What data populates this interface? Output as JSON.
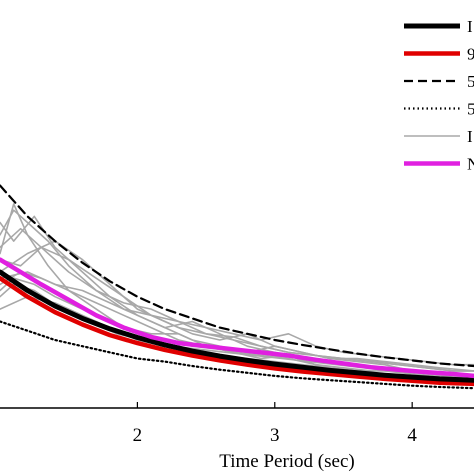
{
  "chart_data": {
    "type": "line",
    "xlabel": "Time Period (sec)",
    "ylabel": "",
    "title": "",
    "xlim": [
      1.0,
      4.45
    ],
    "ylim": [
      0.0,
      0.66
    ],
    "x_ticks": [
      2,
      3,
      4
    ],
    "x_tick_labels": [
      "2",
      "3",
      "4"
    ],
    "grid": false,
    "legend_position": "top-right",
    "legend": [
      {
        "label": "I",
        "color": "#000000",
        "dash": "",
        "width": 5
      },
      {
        "label": "9",
        "color": "#e00000",
        "dash": "",
        "width": 4.5
      },
      {
        "label": "5",
        "color": "#000000",
        "dash": "9 5",
        "width": 2.2
      },
      {
        "label": "5",
        "color": "#000000",
        "dash": "1.5 3",
        "width": 2.2
      },
      {
        "label": "I",
        "color": "#a8a8a8",
        "dash": "",
        "width": 1.6
      },
      {
        "label": "N",
        "color": "#e020e0",
        "dash": "",
        "width": 4.5
      }
    ],
    "series": [
      {
        "style_index": 4,
        "color": "#a8a8a8",
        "x": [
          1.0,
          1.1,
          1.2,
          1.35,
          1.5,
          1.7,
          1.9,
          2.1,
          2.3,
          2.5,
          2.7,
          2.9,
          3.1,
          3.3,
          3.5,
          3.7,
          3.9,
          4.1,
          4.3,
          4.45
        ],
        "y": [
          0.25,
          0.33,
          0.28,
          0.23,
          0.19,
          0.17,
          0.15,
          0.13,
          0.11,
          0.1,
          0.09,
          0.085,
          0.08,
          0.07,
          0.06,
          0.055,
          0.05,
          0.05,
          0.045,
          0.04
        ]
      },
      {
        "style_index": 4,
        "color": "#a8a8a8",
        "x": [
          1.0,
          1.1,
          1.25,
          1.4,
          1.6,
          1.8,
          2.0,
          2.2,
          2.4,
          2.6,
          2.8,
          3.0,
          3.2,
          3.4,
          3.6,
          3.8,
          4.0,
          4.2,
          4.45
        ],
        "y": [
          0.3,
          0.27,
          0.31,
          0.26,
          0.22,
          0.18,
          0.15,
          0.13,
          0.14,
          0.12,
          0.1,
          0.09,
          0.08,
          0.075,
          0.07,
          0.06,
          0.055,
          0.05,
          0.045
        ]
      },
      {
        "style_index": 4,
        "color": "#a8a8a8",
        "x": [
          1.0,
          1.15,
          1.3,
          1.5,
          1.7,
          1.9,
          2.1,
          2.3,
          2.5,
          2.7,
          2.9,
          3.1,
          3.3,
          3.5,
          3.7,
          3.9,
          4.1,
          4.3,
          4.45
        ],
        "y": [
          0.2,
          0.22,
          0.21,
          0.19,
          0.16,
          0.13,
          0.12,
          0.12,
          0.1,
          0.09,
          0.08,
          0.085,
          0.07,
          0.065,
          0.06,
          0.06,
          0.055,
          0.05,
          0.05
        ]
      },
      {
        "style_index": 4,
        "color": "#a8a8a8",
        "x": [
          1.0,
          1.1,
          1.2,
          1.35,
          1.5,
          1.7,
          1.9,
          2.1,
          2.3,
          2.5,
          2.7,
          2.9,
          3.1,
          3.3,
          3.5,
          3.7,
          3.9,
          4.1,
          4.3,
          4.45
        ],
        "y": [
          0.28,
          0.32,
          0.3,
          0.27,
          0.23,
          0.19,
          0.16,
          0.15,
          0.14,
          0.12,
          0.11,
          0.1,
          0.09,
          0.085,
          0.08,
          0.075,
          0.07,
          0.065,
          0.06,
          0.06
        ]
      },
      {
        "style_index": 4,
        "color": "#a8a8a8",
        "x": [
          1.0,
          1.2,
          1.4,
          1.6,
          1.8,
          2.0,
          2.2,
          2.4,
          2.6,
          2.8,
          3.0,
          3.2,
          3.4,
          3.6,
          3.8,
          4.0,
          4.2,
          4.45
        ],
        "y": [
          0.22,
          0.25,
          0.27,
          0.24,
          0.2,
          0.16,
          0.14,
          0.12,
          0.11,
          0.12,
          0.1,
          0.09,
          0.08,
          0.075,
          0.07,
          0.06,
          0.055,
          0.05
        ]
      },
      {
        "style_index": 4,
        "color": "#a8a8a8",
        "x": [
          1.0,
          1.1,
          1.25,
          1.45,
          1.65,
          1.85,
          2.05,
          2.25,
          2.45,
          2.65,
          2.85,
          3.05,
          3.25,
          3.45,
          3.65,
          3.85,
          4.05,
          4.25,
          4.45
        ],
        "y": [
          0.18,
          0.2,
          0.19,
          0.16,
          0.14,
          0.12,
          0.11,
          0.1,
          0.095,
          0.09,
          0.085,
          0.08,
          0.075,
          0.07,
          0.065,
          0.06,
          0.06,
          0.055,
          0.05
        ]
      },
      {
        "style_index": 4,
        "color": "#a8a8a8",
        "x": [
          1.0,
          1.15,
          1.3,
          1.5,
          1.7,
          1.9,
          2.1,
          2.3,
          2.5,
          2.7,
          2.9,
          3.1,
          3.3,
          3.5,
          3.7,
          3.9,
          4.1,
          4.3,
          4.45
        ],
        "y": [
          0.24,
          0.23,
          0.26,
          0.22,
          0.19,
          0.17,
          0.16,
          0.14,
          0.13,
          0.12,
          0.11,
          0.12,
          0.1,
          0.09,
          0.085,
          0.08,
          0.075,
          0.07,
          0.07
        ]
      },
      {
        "style_index": 4,
        "color": "#a8a8a8",
        "x": [
          1.0,
          1.2,
          1.4,
          1.6,
          1.8,
          2.0,
          2.2,
          2.4,
          2.6,
          2.8,
          3.0,
          3.2,
          3.4,
          3.6,
          3.8,
          4.0,
          4.2,
          4.45
        ],
        "y": [
          0.16,
          0.18,
          0.17,
          0.15,
          0.13,
          0.11,
          0.1,
          0.09,
          0.085,
          0.08,
          0.075,
          0.07,
          0.065,
          0.06,
          0.055,
          0.05,
          0.045,
          0.04
        ]
      },
      {
        "style_index": 4,
        "color": "#a8a8a8",
        "x": [
          1.0,
          1.15,
          1.3,
          1.5,
          1.7,
          1.9,
          2.1,
          2.3,
          2.5,
          2.7,
          2.9,
          3.1,
          3.3,
          3.5,
          3.7,
          3.9,
          4.1,
          4.3,
          4.45
        ],
        "y": [
          0.26,
          0.29,
          0.26,
          0.24,
          0.21,
          0.18,
          0.15,
          0.13,
          0.12,
          0.115,
          0.1,
          0.09,
          0.085,
          0.08,
          0.075,
          0.07,
          0.065,
          0.06,
          0.06
        ]
      },
      {
        "style_index": 4,
        "color": "#a8a8a8",
        "x": [
          1.0,
          1.2,
          1.4,
          1.6,
          1.8,
          2.0,
          2.2,
          2.4,
          2.6,
          2.8,
          3.0,
          3.2,
          3.4,
          3.6,
          3.8,
          4.0,
          4.2,
          4.45
        ],
        "y": [
          0.21,
          0.22,
          0.2,
          0.19,
          0.17,
          0.15,
          0.13,
          0.11,
          0.1,
          0.09,
          0.085,
          0.08,
          0.075,
          0.07,
          0.065,
          0.06,
          0.055,
          0.05
        ]
      },
      {
        "style_index": 4,
        "color": "#a8a8a8",
        "x": [
          1.0,
          1.1,
          1.25,
          1.4,
          1.6,
          1.8,
          2.0,
          2.2,
          2.4,
          2.6,
          2.8,
          3.0,
          3.2,
          3.4,
          3.6,
          3.8,
          4.0,
          4.2,
          4.45
        ],
        "y": [
          0.19,
          0.21,
          0.2,
          0.18,
          0.16,
          0.14,
          0.12,
          0.11,
          0.1,
          0.095,
          0.09,
          0.1,
          0.09,
          0.08,
          0.08,
          0.075,
          0.07,
          0.065,
          0.06
        ]
      },
      {
        "style_index": 3,
        "color": "#000000",
        "x": [
          1.0,
          1.2,
          1.4,
          1.6,
          1.8,
          2.0,
          2.2,
          2.4,
          2.6,
          2.8,
          3.0,
          3.2,
          3.4,
          3.6,
          3.8,
          4.0,
          4.2,
          4.45
        ],
        "y": [
          0.14,
          0.125,
          0.11,
          0.1,
          0.09,
          0.08,
          0.075,
          0.068,
          0.062,
          0.057,
          0.052,
          0.048,
          0.045,
          0.042,
          0.039,
          0.036,
          0.034,
          0.032
        ]
      },
      {
        "style_index": 2,
        "color": "#000000",
        "x": [
          1.0,
          1.2,
          1.4,
          1.6,
          1.8,
          2.0,
          2.2,
          2.4,
          2.6,
          2.8,
          3.0,
          3.2,
          3.4,
          3.6,
          3.8,
          4.0,
          4.2,
          4.45
        ],
        "y": [
          0.36,
          0.31,
          0.27,
          0.235,
          0.205,
          0.18,
          0.16,
          0.145,
          0.13,
          0.12,
          0.11,
          0.102,
          0.095,
          0.088,
          0.082,
          0.077,
          0.072,
          0.068
        ]
      },
      {
        "style_index": 1,
        "color": "#e00000",
        "x": [
          1.0,
          1.2,
          1.4,
          1.6,
          1.8,
          2.0,
          2.2,
          2.4,
          2.6,
          2.8,
          3.0,
          3.2,
          3.4,
          3.6,
          3.8,
          4.0,
          4.2,
          4.45
        ],
        "y": [
          0.21,
          0.18,
          0.155,
          0.135,
          0.118,
          0.105,
          0.094,
          0.085,
          0.077,
          0.07,
          0.064,
          0.059,
          0.055,
          0.051,
          0.047,
          0.044,
          0.041,
          0.039
        ]
      },
      {
        "style_index": 0,
        "color": "#000000",
        "x": [
          1.0,
          1.2,
          1.4,
          1.6,
          1.8,
          2.0,
          2.2,
          2.4,
          2.6,
          2.8,
          3.0,
          3.2,
          3.4,
          3.6,
          3.8,
          4.0,
          4.2,
          4.45
        ],
        "y": [
          0.22,
          0.19,
          0.165,
          0.145,
          0.128,
          0.114,
          0.102,
          0.092,
          0.084,
          0.077,
          0.071,
          0.066,
          0.061,
          0.057,
          0.053,
          0.05,
          0.047,
          0.045
        ]
      },
      {
        "style_index": 5,
        "color": "#e020e0",
        "x": [
          1.0,
          1.15,
          1.3,
          1.5,
          1.7,
          1.9,
          2.1,
          2.3,
          2.5,
          2.7,
          2.9,
          3.1,
          3.3,
          3.5,
          3.7,
          3.9,
          4.1,
          4.3,
          4.45
        ],
        "y": [
          0.24,
          0.22,
          0.2,
          0.175,
          0.15,
          0.13,
          0.115,
          0.105,
          0.1,
          0.095,
          0.09,
          0.085,
          0.078,
          0.072,
          0.066,
          0.062,
          0.058,
          0.055,
          0.052
        ]
      }
    ]
  }
}
